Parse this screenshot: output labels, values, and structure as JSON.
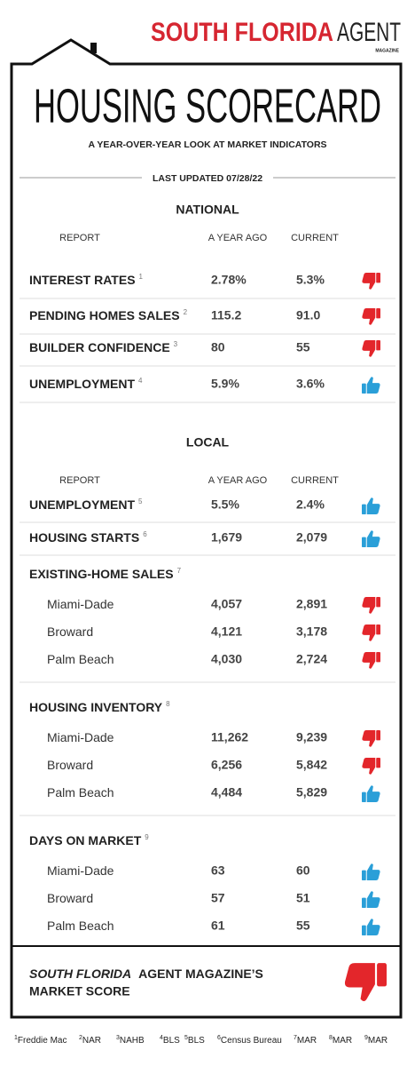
{
  "header": {
    "brand": "SOUTH FLORIDA",
    "brand2": "AGENT",
    "brand_sub": "MAGAZINE",
    "title": "HOUSING SCORECARD",
    "subtitle": "A YEAR-OVER-YEAR LOOK AT MARKET INDICATORS",
    "updated": "LAST UPDATED 07/28/22"
  },
  "national": {
    "heading": "NATIONAL",
    "columns": [
      "REPORT",
      "A YEAR AGO",
      "CURRENT"
    ],
    "rows": [
      {
        "label": "INTEREST RATES",
        "note": "1",
        "year_ago": "2.78%",
        "current": "5.3%",
        "icon": "thumbs-down"
      },
      {
        "label": "PENDING HOMES SALES",
        "note": "2",
        "year_ago": "115.2",
        "current": "91.0",
        "icon": "thumbs-down"
      },
      {
        "label": "BUILDER CONFIDENCE",
        "note": "3",
        "year_ago": "80",
        "current": "55",
        "icon": "thumbs-down"
      },
      {
        "label": "UNEMPLOYMENT",
        "note": "4",
        "year_ago": "5.9%",
        "current": "3.6%",
        "icon": "thumbs-up"
      }
    ]
  },
  "local": {
    "heading": "LOCAL",
    "columns": [
      "REPORT",
      "A YEAR AGO",
      "CURRENT"
    ],
    "rows": [
      {
        "label": "UNEMPLOYMENT",
        "note": "5",
        "year_ago": "5.5%",
        "current": "2.4%",
        "icon": "thumbs-up"
      },
      {
        "label": "HOUSING STARTS",
        "note": "6",
        "year_ago": "1,679",
        "current": "2,079",
        "icon": "thumbs-up"
      },
      {
        "label": "EXISTING-HOME SALES",
        "note": "7",
        "items": [
          {
            "label": "Miami-Dade",
            "year_ago": "4,057",
            "current": "2,891",
            "icon": "thumbs-down"
          },
          {
            "label": "Broward",
            "year_ago": "4,121",
            "current": "3,178",
            "icon": "thumbs-down"
          },
          {
            "label": "Palm Beach",
            "year_ago": "4,030",
            "current": "2,724",
            "icon": "thumbs-down"
          }
        ]
      },
      {
        "label": "HOUSING INVENTORY",
        "note": "8",
        "items": [
          {
            "label": "Miami-Dade",
            "year_ago": "11,262",
            "current": "9,239",
            "icon": "thumbs-down"
          },
          {
            "label": "Broward",
            "year_ago": "6,256",
            "current": "5,842",
            "icon": "thumbs-down"
          },
          {
            "label": "Palm Beach",
            "year_ago": "4,484",
            "current": "5,829",
            "icon": "thumbs-up"
          }
        ]
      },
      {
        "label": "DAYS ON MARKET",
        "note": "9",
        "items": [
          {
            "label": "Miami-Dade",
            "year_ago": "63",
            "current": "60",
            "icon": "thumbs-up"
          },
          {
            "label": "Broward",
            "year_ago": "57",
            "current": "51",
            "icon": "thumbs-up"
          },
          {
            "label": "Palm Beach",
            "year_ago": "61",
            "current": "55",
            "icon": "thumbs-up"
          }
        ]
      }
    ]
  },
  "score": {
    "title_italic": "SOUTH FLORIDA",
    "title_rest": "AGENT MAGAZINE’S",
    "title_line2": "MARKET SCORE",
    "icon": "thumbs-down"
  },
  "footnotes": [
    {
      "num": "1",
      "text": "Freddie Mac"
    },
    {
      "num": "2",
      "text": "NAR"
    },
    {
      "num": "3",
      "text": "NAHB"
    },
    {
      "num": "4",
      "text": "BLS"
    },
    {
      "num": "5",
      "text": "BLS"
    },
    {
      "num": "6",
      "text": "Census Bureau"
    },
    {
      "num": "7",
      "text": "MAR"
    },
    {
      "num": "8",
      "text": "MAR"
    },
    {
      "num": "9",
      "text": "MAR"
    }
  ]
}
